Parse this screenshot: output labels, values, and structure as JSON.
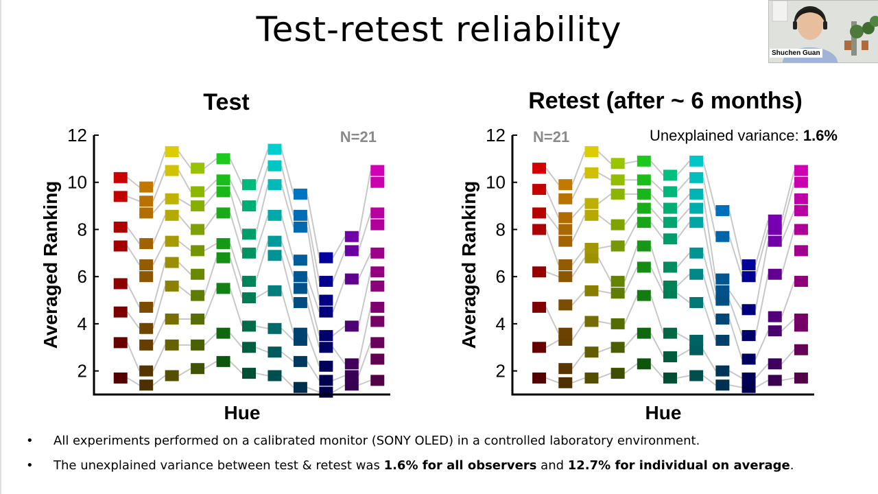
{
  "slide": {
    "title": "Test-retest reliability"
  },
  "participant": {
    "name": "Shuchen Guan"
  },
  "bullets": [
    {
      "symbol": "•",
      "parts": [
        {
          "text": "All experiments performed on a calibrated monitor (SONY OLED) in a controlled laboratory environment.",
          "bold": false
        }
      ]
    },
    {
      "symbol": "•",
      "parts": [
        {
          "text": "The unexplained variance between test & retest was ",
          "bold": false
        },
        {
          "text": "1.6% for all observers",
          "bold": true
        },
        {
          "text": " and ",
          "bold": false
        },
        {
          "text": "12.7% for individual on average",
          "bold": true
        },
        {
          "text": ".",
          "bold": false
        }
      ]
    }
  ],
  "chart_data": [
    {
      "type": "scatter",
      "title": "Test",
      "xlabel": "Hue",
      "ylabel": "Averaged Ranking",
      "ylim": [
        1,
        12
      ],
      "yticks": [
        "2",
        "4",
        "6",
        "8",
        "10",
        "12"
      ],
      "annotation": {
        "text": "N=21",
        "position": "top-right"
      },
      "colors": [
        "#e60000",
        "#e08a00",
        "#e6d600",
        "#a6d600",
        "#1fd61f",
        "#00d690",
        "#00d6d6",
        "#008ae6",
        "#0000e6",
        "#9a00e6",
        "#e600c8"
      ],
      "columns": [
        [
          1.7,
          3.2,
          4.5,
          5.7,
          7.3,
          8.1,
          9.4,
          10.2
        ],
        [
          1.4,
          2.0,
          3.1,
          3.8,
          4.7,
          6.0,
          6.5,
          7.4,
          8.7,
          9.2,
          9.8
        ],
        [
          1.8,
          3.1,
          4.2,
          5.6,
          6.6,
          7.5,
          8.6,
          9.3,
          10.5,
          11.3
        ],
        [
          2.1,
          3.1,
          4.2,
          5.2,
          6.1,
          7.1,
          8.0,
          9.0,
          9.6,
          10.6
        ],
        [
          2.4,
          3.6,
          5.5,
          6.8,
          7.4,
          8.7,
          9.6,
          10.1,
          11.0
        ],
        [
          1.9,
          3.0,
          3.9,
          5.1,
          5.8,
          7.0,
          7.8,
          9.0,
          9.9
        ],
        [
          1.8,
          2.8,
          3.8,
          5.4,
          6.9,
          7.5,
          8.6,
          9.9,
          10.7,
          11.4
        ],
        [
          1.3,
          2.4,
          3.3,
          3.6,
          4.9,
          5.5,
          6.0,
          6.7,
          8.1,
          8.6,
          9.5
        ],
        [
          1.1,
          1.6,
          2.2,
          3.0,
          3.5,
          4.5,
          5.0,
          5.8,
          6.8
        ],
        [
          1.4,
          1.8,
          2.3,
          3.9,
          5.9,
          7.1,
          7.7
        ],
        [
          1.6,
          2.5,
          3.2,
          4.1,
          4.7,
          5.6,
          6.2,
          7.0,
          8.2,
          8.7,
          10.0,
          10.5
        ]
      ],
      "connections": "grey lines connect adjacent hue columns"
    },
    {
      "type": "scatter",
      "title": "Retest (after ~ 6 months)",
      "xlabel": "Hue",
      "ylabel": "Averaged Ranking",
      "ylim": [
        1,
        12
      ],
      "yticks": [
        "2",
        "4",
        "6",
        "8",
        "10",
        "12"
      ],
      "annotation": {
        "text": "N=21",
        "position": "top-left"
      },
      "variance_label": "Unexplained variance: ",
      "variance_value": "1.6%",
      "colors": [
        "#e60000",
        "#e08a00",
        "#e6d600",
        "#a6d600",
        "#1fd61f",
        "#00d690",
        "#00d6d6",
        "#008ae6",
        "#0000e6",
        "#9a00e6",
        "#e600c8"
      ],
      "columns": [
        [
          1.7,
          3.0,
          4.7,
          6.2,
          8.0,
          8.7,
          9.7,
          10.6
        ],
        [
          1.5,
          2.1,
          3.3,
          3.6,
          4.8,
          6.0,
          6.5,
          7.5,
          8.0,
          8.5,
          9.3,
          9.9
        ],
        [
          1.7,
          2.8,
          4.1,
          5.4,
          6.8,
          7.2,
          8.6,
          9.1,
          10.4,
          11.3
        ],
        [
          1.9,
          3.0,
          4.0,
          5.3,
          5.8,
          7.3,
          8.2,
          9.5,
          10.1,
          10.8
        ],
        [
          2.3,
          3.6,
          5.2,
          6.4,
          7.3,
          8.3,
          8.9,
          9.5,
          10.1,
          10.9
        ],
        [
          1.7,
          2.6,
          3.6,
          5.3,
          5.6,
          6.4,
          7.6,
          8.3,
          8.9,
          9.6,
          10.3
        ],
        [
          1.8,
          2.9,
          3.3,
          4.9,
          6.1,
          7.0,
          8.3,
          8.9,
          9.5,
          10.2,
          10.9
        ],
        [
          1.4,
          2.0,
          3.3,
          4.2,
          5.0,
          5.4,
          5.9,
          7.7,
          8.8
        ],
        [
          1.3,
          1.7,
          2.5,
          3.5,
          4.6,
          6.0,
          6.5
        ],
        [
          1.6,
          2.3,
          3.7,
          4.3,
          6.1,
          7.5,
          8.0,
          8.4
        ],
        [
          1.7,
          2.9,
          3.9,
          4.2,
          5.8,
          7.1,
          8.0,
          8.8,
          9.3,
          10.0,
          10.5
        ]
      ],
      "connections": "grey lines connect adjacent hue columns"
    }
  ]
}
